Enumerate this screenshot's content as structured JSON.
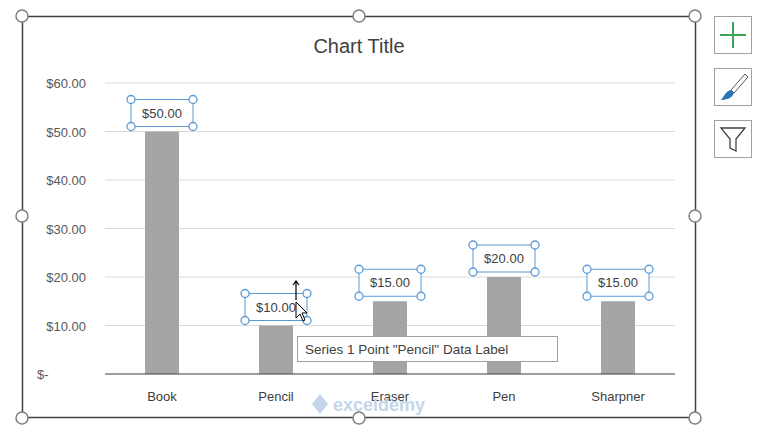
{
  "chart_data": {
    "type": "bar",
    "title": "Chart Title",
    "categories": [
      "Book",
      "Pencil",
      "Eraser",
      "Pen",
      "Sharpner"
    ],
    "values": [
      50,
      10,
      15,
      20,
      15
    ],
    "value_labels": [
      "$50.00",
      "$10.00",
      "$15.00",
      "$20.00",
      "$15.00"
    ],
    "color": "#a5a5a5",
    "ylim": [
      0,
      60
    ],
    "yticks": [
      {
        "value": 0,
        "label": "$-"
      },
      {
        "value": 10,
        "label": "$10.00"
      },
      {
        "value": 20,
        "label": "$20.00"
      },
      {
        "value": 30,
        "label": "$30.00"
      },
      {
        "value": 40,
        "label": "$40.00"
      },
      {
        "value": 50,
        "label": "$50.00"
      },
      {
        "value": 60,
        "label": "$60.00"
      }
    ],
    "grid": true,
    "data_labels": true,
    "annotations": [
      "Series 1 Point \"Pencil\" Data Label",
      "exceldemy"
    ]
  }
}
